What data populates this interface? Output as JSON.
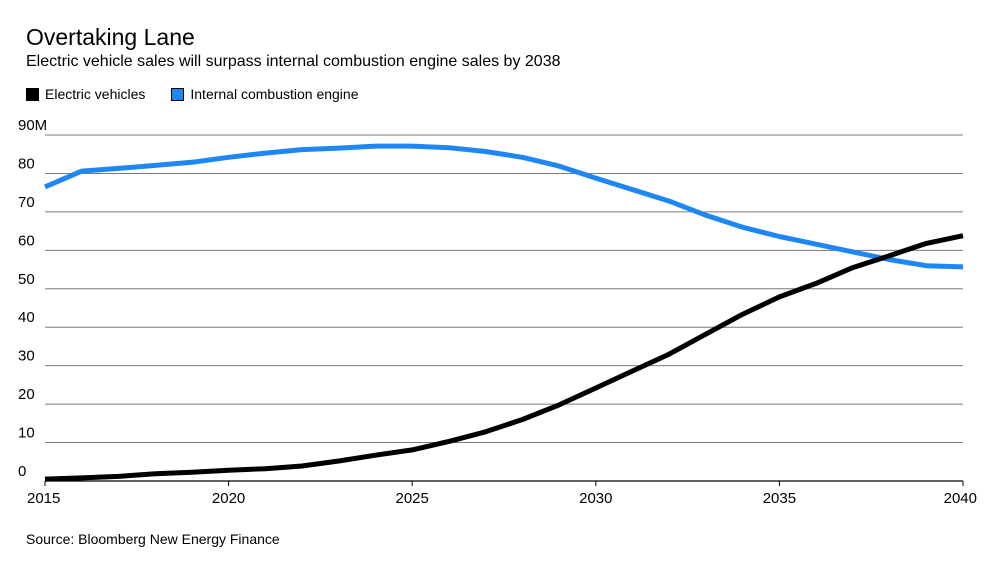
{
  "chart_data": {
    "type": "line",
    "title": "Overtaking Lane",
    "subtitle": "Electric vehicle sales will surpass internal combustion engine sales by 2038",
    "source": "Source: Bloomberg New Energy Finance",
    "x": [
      2015,
      2016,
      2017,
      2018,
      2019,
      2020,
      2021,
      2022,
      2023,
      2024,
      2025,
      2026,
      2027,
      2028,
      2029,
      2030,
      2031,
      2032,
      2033,
      2034,
      2035,
      2036,
      2037,
      2038,
      2039,
      2040
    ],
    "series": [
      {
        "name": "Electric vehicles",
        "color": "#000000",
        "values": [
          0.5,
          0.8,
          1.2,
          1.9,
          2.3,
          2.8,
          3.2,
          3.9,
          5.2,
          6.7,
          8.1,
          10.3,
          12.8,
          16.0,
          19.8,
          24.2,
          28.6,
          33.0,
          38.2,
          43.4,
          47.9,
          51.4,
          55.5,
          58.6,
          61.8,
          63.8
        ]
      },
      {
        "name": "Internal combustion engine",
        "color": "#1f87f5",
        "values": [
          76.5,
          80.6,
          81.3,
          82.1,
          82.9,
          84.2,
          85.3,
          86.2,
          86.6,
          87.1,
          87.1,
          86.7,
          85.7,
          84.2,
          81.9,
          78.8,
          75.8,
          72.8,
          69.1,
          66.0,
          63.6,
          61.6,
          59.6,
          57.6,
          56.0,
          55.7
        ]
      }
    ],
    "x_ticks": [
      "2015",
      "2020",
      "2025",
      "2030",
      "2035",
      "2040"
    ],
    "x_tick_values": [
      2015,
      2020,
      2025,
      2030,
      2035,
      2040
    ],
    "y_ticks": [
      "0",
      "10",
      "20",
      "30",
      "40",
      "50",
      "60",
      "70",
      "80",
      "90M"
    ],
    "y_tick_values": [
      0,
      10,
      20,
      30,
      40,
      50,
      60,
      70,
      80,
      90
    ],
    "xlim": [
      2015,
      2040
    ],
    "ylim": [
      0,
      90
    ],
    "grid": true,
    "legend_position": "top-left"
  }
}
